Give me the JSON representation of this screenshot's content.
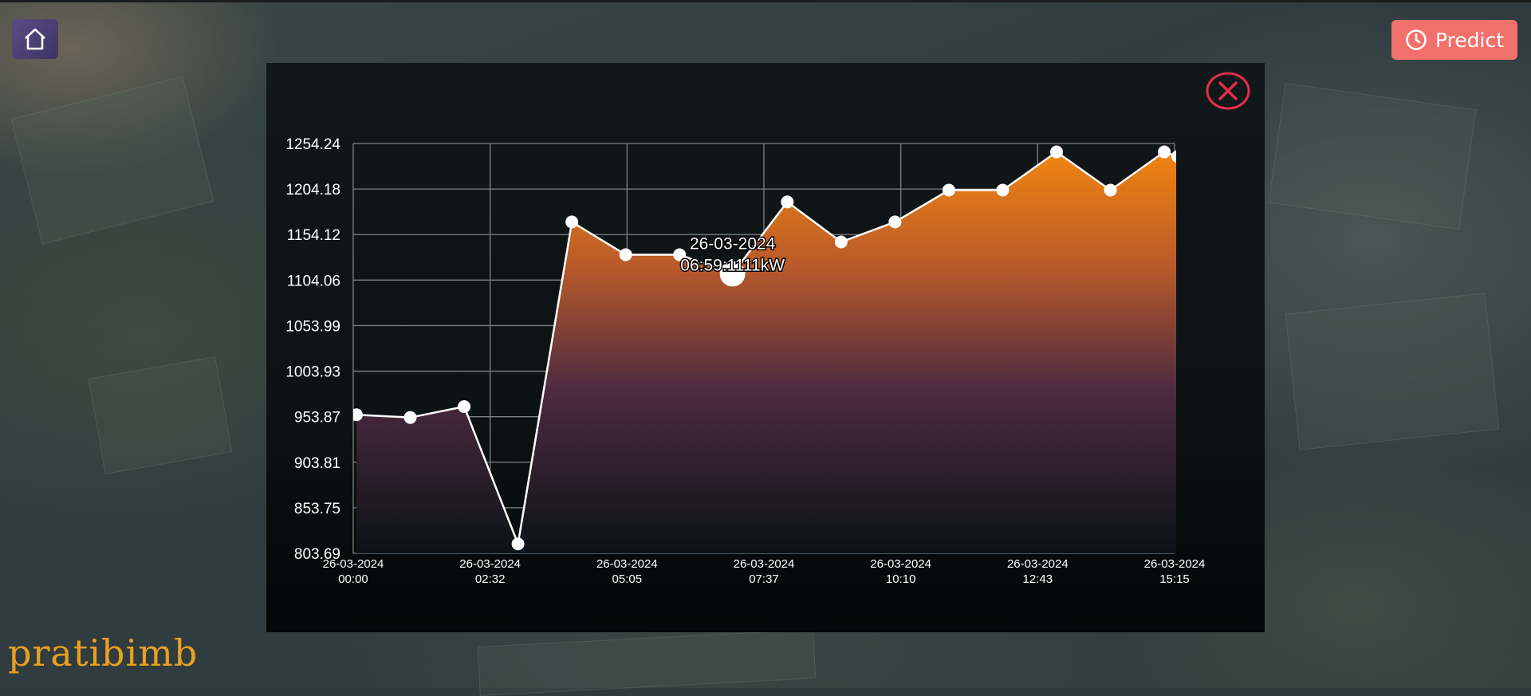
{
  "app": {
    "brand": "pratibimb",
    "predict_label": "Predict",
    "home_icon": "home-icon",
    "predict_icon": "clock-icon",
    "close_icon": "close-icon"
  },
  "colors": {
    "predict_bg": "#f2706b",
    "close_ring": "#e52d4a",
    "area_top": "#f5870f",
    "area_bottom": "#0b1318",
    "line": "#ffffff",
    "brand": "#e9a020"
  },
  "chart_data": {
    "type": "area",
    "title": "",
    "xlabel": "",
    "ylabel": "",
    "ylim": [
      803.69,
      1254.24
    ],
    "y_ticks": [
      "1254.24",
      "1204.18",
      "1154.12",
      "1104.06",
      "1053.99",
      "1003.93",
      "953.87",
      "903.81",
      "853.75",
      "803.69"
    ],
    "x_ticks": [
      {
        "date": "26-03-2024",
        "time": "00:00"
      },
      {
        "date": "26-03-2024",
        "time": "02:32"
      },
      {
        "date": "26-03-2024",
        "time": "05:05"
      },
      {
        "date": "26-03-2024",
        "time": "07:37"
      },
      {
        "date": "26-03-2024",
        "time": "10:10"
      },
      {
        "date": "26-03-2024",
        "time": "12:43"
      },
      {
        "date": "26-03-2024",
        "time": "15:15"
      }
    ],
    "grid": true,
    "series": [
      {
        "x": [
          "00:00",
          "01:00",
          "02:00",
          "03:00",
          "04:00",
          "05:00",
          "06:00",
          "06:59",
          "08:00",
          "09:00",
          "10:00",
          "11:00",
          "12:00",
          "13:00",
          "14:00",
          "15:00",
          "15:15"
        ],
        "values": [
          956,
          953,
          965,
          814,
          1168,
          1132,
          1132,
          1111,
          1190,
          1146,
          1168,
          1203,
          1203,
          1245,
          1203,
          1245,
          1240
        ]
      }
    ],
    "tooltip": {
      "date": "26-03-2024",
      "time_value": "06:59:1111kW",
      "index": 7
    }
  }
}
